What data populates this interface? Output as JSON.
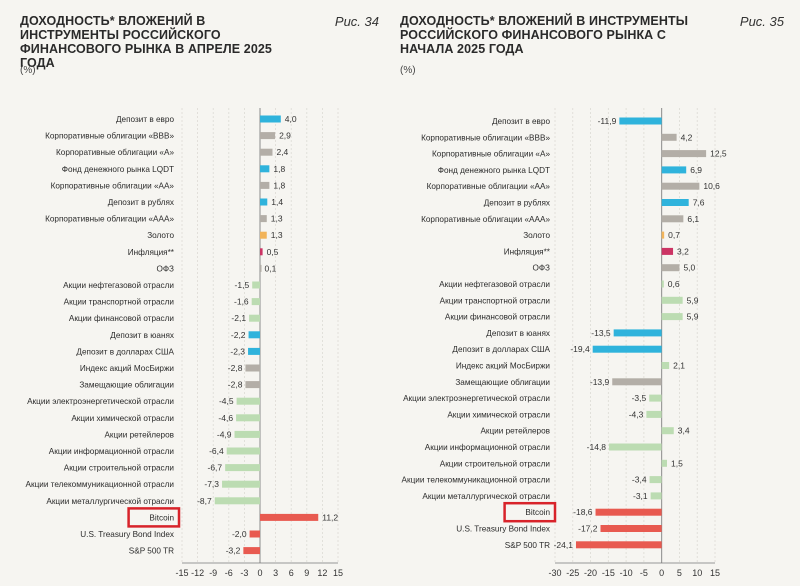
{
  "colors": {
    "teal": "#2fb3dc",
    "gray": "#b3aea7",
    "green": "#bcdcb2",
    "red": "#e85a50",
    "orange": "#f2b45a",
    "magenta": "#cc3464",
    "highlight": "#d8232a"
  },
  "chart_data": [
    {
      "type": "bar",
      "orientation": "horizontal",
      "title": "ДОХОДНОСТЬ* ВЛОЖЕНИЙ В ИНСТРУМЕНТЫ РОССИЙСКОГО ФИНАНСОВОГО РЫНКА В АПРЕЛЕ 2025 ГОДА",
      "figure_label": "Рис. 34",
      "unit": "(%)",
      "xlim": [
        -15,
        15
      ],
      "xticks": [
        "-15",
        "-12",
        "-9",
        "-6",
        "-3",
        "0",
        "3",
        "6",
        "9",
        "12",
        "15"
      ],
      "highlight_category": "Bitcoin",
      "categories": [
        "Депозит в евро",
        "Корпоративные облигации «BBB»",
        "Корпоративные облигации «А»",
        "Фонд денежного рынка LQDT",
        "Корпоративные облигации «АА»",
        "Депозит в рублях",
        "Корпоративные облигации «AAA»",
        "Золото",
        "Инфляция**",
        "ОФЗ",
        "Акции нефтегазовой отрасли",
        "Акции транспортной отрасли",
        "Акции финансовой отрасли",
        "Депозит в юанях",
        "Депозит в долларах США",
        "Индекс акций МосБиржи",
        "Замещающие облигации",
        "Акции электроэнергетической отрасли",
        "Акции химической отрасли",
        "Акции ретейлеров",
        "Акции информационной отрасли",
        "Акции строительной отрасли",
        "Акции телекоммуникационной отрасли",
        "Акции металлургической отрасли",
        "Bitcoin",
        "U.S. Treasury Bond Index",
        "S&P 500 TR"
      ],
      "values": [
        4.0,
        2.9,
        2.4,
        1.8,
        1.8,
        1.4,
        1.3,
        1.3,
        0.5,
        0.1,
        -1.5,
        -1.6,
        -2.1,
        -2.2,
        -2.3,
        -2.8,
        -2.8,
        -4.5,
        -4.6,
        -4.9,
        -6.4,
        -6.7,
        -7.3,
        -8.7,
        11.2,
        -2.0,
        -3.2
      ],
      "value_labels": [
        "4,0",
        "2,9",
        "2,4",
        "1,8",
        "1,8",
        "1,4",
        "1,3",
        "1,3",
        "0,5",
        "0,1",
        "-1,5",
        "-1,6",
        "-2,1",
        "-2,2",
        "-2,3",
        "-2,8",
        "-2,8",
        "-4,5",
        "-4,6",
        "-4,9",
        "-6,4",
        "-6,7",
        "-7,3",
        "-8,7",
        "11,2",
        "-2,0",
        "-3,2"
      ],
      "bar_colors": [
        "teal",
        "gray",
        "gray",
        "teal",
        "gray",
        "teal",
        "gray",
        "orange",
        "magenta",
        "gray",
        "green",
        "green",
        "green",
        "teal",
        "teal",
        "gray",
        "gray",
        "green",
        "green",
        "green",
        "green",
        "green",
        "green",
        "green",
        "red",
        "red",
        "red"
      ]
    },
    {
      "type": "bar",
      "orientation": "horizontal",
      "title": "ДОХОДНОСТЬ* ВЛОЖЕНИЙ В ИНСТРУМЕНТЫ РОССИЙСКОГО ФИНАНСОВОГО РЫНКА С НАЧАЛА 2025 ГОДА",
      "figure_label": "Рис. 35",
      "unit": "(%)",
      "xlim": [
        -30,
        15
      ],
      "xticks": [
        "-30",
        "-25",
        "-20",
        "-15",
        "-10",
        "-5",
        "0",
        "5",
        "10",
        "15"
      ],
      "highlight_category": "Bitcoin",
      "categories": [
        "Депозит в евро",
        "Корпоративные облигации «BBB»",
        "Корпоративные облигации «А»",
        "Фонд денежного рынка LQDT",
        "Корпоративные облигации «АА»",
        "Депозит в рублях",
        "Корпоративные облигации «AAA»",
        "Золото",
        "Инфляция**",
        "ОФЗ",
        "Акции нефтегазовой отрасли",
        "Акции транспортной отрасли",
        "Акции финансовой отрасли",
        "Депозит в юанях",
        "Депозит в долларах США",
        "Индекс акций МосБиржи",
        "Замещающие облигации",
        "Акции электроэнергетической отрасли",
        "Акции химической отрасли",
        "Акции ретейлеров",
        "Акции информационной отрасли",
        "Акции строительной отрасли",
        "Акции телекоммуникационной отрасли",
        "Акции металлургической отрасли",
        "Bitcoin",
        "U.S. Treasury Bond Index",
        "S&P 500 TR"
      ],
      "values": [
        -11.9,
        4.2,
        12.5,
        6.9,
        10.6,
        7.6,
        6.1,
        0.7,
        3.2,
        5.0,
        0.6,
        5.9,
        5.9,
        -13.5,
        -19.4,
        2.1,
        -13.9,
        -3.5,
        -4.3,
        3.4,
        -14.8,
        1.5,
        -3.4,
        -3.1,
        -18.6,
        -17.2,
        -24.1
      ],
      "value_labels": [
        "-11,9",
        "4,2",
        "12,5",
        "6,9",
        "10,6",
        "7,6",
        "6,1",
        "0,7",
        "3,2",
        "5,0",
        "0,6",
        "5,9",
        "5,9",
        "-13,5",
        "-19,4",
        "2,1",
        "-13,9",
        "-3,5",
        "-4,3",
        "3,4",
        "-14,8",
        "1,5",
        "-3,4",
        "-3,1",
        "-18,6",
        "-17,2",
        "-24,1"
      ],
      "bar_colors": [
        "teal",
        "gray",
        "gray",
        "teal",
        "gray",
        "teal",
        "gray",
        "orange",
        "magenta",
        "gray",
        "green",
        "green",
        "green",
        "teal",
        "teal",
        "green",
        "gray",
        "green",
        "green",
        "green",
        "green",
        "green",
        "green",
        "green",
        "red",
        "red",
        "red"
      ]
    }
  ]
}
